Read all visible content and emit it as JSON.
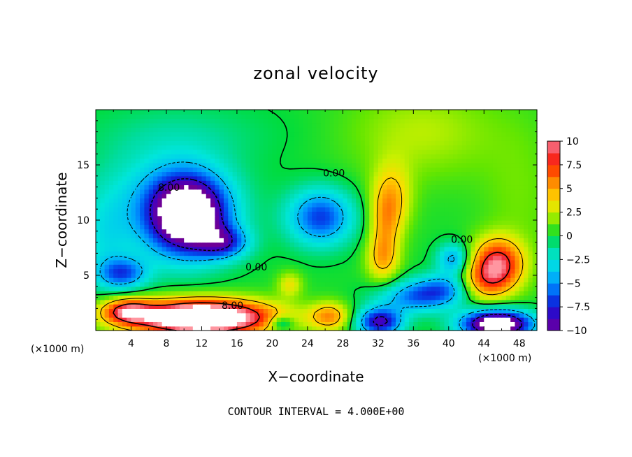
{
  "chart_data": {
    "type": "heatmap",
    "title": "zonal velocity",
    "xlabel": "X−coordinate",
    "ylabel": "Z−coordinate",
    "x_unit_label": "(×1000 m)",
    "y_unit_label": "(×1000 m)",
    "xlim": [
      0,
      50
    ],
    "ylim": [
      0,
      20
    ],
    "x_ticks": [
      4,
      8,
      12,
      16,
      20,
      24,
      28,
      32,
      36,
      40,
      44,
      48
    ],
    "y_ticks": [
      5,
      10,
      15
    ],
    "x_tick_labels": [
      "4",
      "8",
      "12",
      "16",
      "20",
      "24",
      "28",
      "32",
      "36",
      "40",
      "44",
      "48"
    ],
    "y_tick_labels": [
      "5",
      "10",
      "15"
    ],
    "colorbar": {
      "min": -10,
      "max": 10,
      "ticks": [
        10,
        7.5,
        5,
        2.5,
        0,
        -2.5,
        -5,
        -7.5,
        -10
      ],
      "tick_labels": [
        "10",
        "7.5",
        "5",
        "2.5",
        "0",
        "−2.5",
        "−5",
        "−7.5",
        "−10"
      ]
    },
    "contour_labels": [
      {
        "text": "8.00",
        "x": 8.3,
        "z": 12.9
      },
      {
        "text": "0.00",
        "x": 27.0,
        "z": 14.2
      },
      {
        "text": "0.00",
        "x": 18.2,
        "z": 5.7
      },
      {
        "text": "8.00",
        "x": 15.5,
        "z": 2.2
      },
      {
        "text": "0.00",
        "x": 41.5,
        "z": 8.2
      }
    ],
    "contour_interval_text": "CONTOUR INTERVAL = 4.000E+00",
    "field_features": [
      {
        "x": 10.5,
        "z": 10.5,
        "amp": -13,
        "sx": 3.0,
        "sz": 2.4
      },
      {
        "x": 8.0,
        "z": 11.5,
        "amp": -4,
        "sx": 5.5,
        "sz": 3.5
      },
      {
        "x": 14.5,
        "z": 8.0,
        "amp": -6,
        "sx": 2.0,
        "sz": 1.0
      },
      {
        "x": 3.0,
        "z": 5.2,
        "amp": -6,
        "sx": 2.0,
        "sz": 1.0
      },
      {
        "x": 25.5,
        "z": 10.3,
        "amp": -7,
        "sx": 2.6,
        "sz": 1.8
      },
      {
        "x": 12.0,
        "z": 1.2,
        "amp": 16,
        "sx": 5.5,
        "sz": 1.1
      },
      {
        "x": 3.5,
        "z": 1.8,
        "amp": 7,
        "sx": 2.0,
        "sz": 0.8
      },
      {
        "x": 26.5,
        "z": 1.3,
        "amp": 5,
        "sx": 1.6,
        "sz": 0.9
      },
      {
        "x": 22.0,
        "z": 4.2,
        "amp": 3,
        "sx": 1.0,
        "sz": 0.8
      },
      {
        "x": 32.5,
        "z": 6.5,
        "amp": 4,
        "sx": 1.3,
        "sz": 1.5
      },
      {
        "x": 33.5,
        "z": 12.0,
        "amp": 4,
        "sx": 1.6,
        "sz": 2.2
      },
      {
        "x": 32.8,
        "z": 9.5,
        "amp": 3,
        "sx": 1.2,
        "sz": 2.0
      },
      {
        "x": 45.5,
        "z": 6.0,
        "amp": 9,
        "sx": 2.0,
        "sz": 1.6
      },
      {
        "x": 43.5,
        "z": 4.2,
        "amp": 4,
        "sx": 2.0,
        "sz": 1.2
      },
      {
        "x": 45.5,
        "z": 0.6,
        "amp": -14,
        "sx": 2.8,
        "sz": 0.9
      },
      {
        "x": 32.2,
        "z": 0.8,
        "amp": -9,
        "sx": 1.8,
        "sz": 0.9
      },
      {
        "x": 36.0,
        "z": 3.0,
        "amp": -5,
        "sx": 3.0,
        "sz": 1.0
      },
      {
        "x": 39.5,
        "z": 3.8,
        "amp": -5,
        "sx": 2.5,
        "sz": 1.0
      },
      {
        "x": 40.5,
        "z": 6.5,
        "amp": -5,
        "sx": 1.3,
        "sz": 1.0
      },
      {
        "x": 21.0,
        "z": 0.7,
        "amp": -4,
        "sx": 1.0,
        "sz": 0.5
      },
      {
        "x": 1.0,
        "z": 8.0,
        "amp": -2,
        "sx": 2.0,
        "sz": 3.0
      },
      {
        "x": 37.0,
        "z": 18.0,
        "amp": 2,
        "sx": 6.0,
        "sz": 3.0
      },
      {
        "x": 10.0,
        "z": 18.0,
        "amp": -1,
        "sx": 8.0,
        "sz": 2.0
      },
      {
        "x": 48.0,
        "z": 12.0,
        "amp": 1,
        "sx": 3.0,
        "sz": 5.0
      }
    ]
  }
}
